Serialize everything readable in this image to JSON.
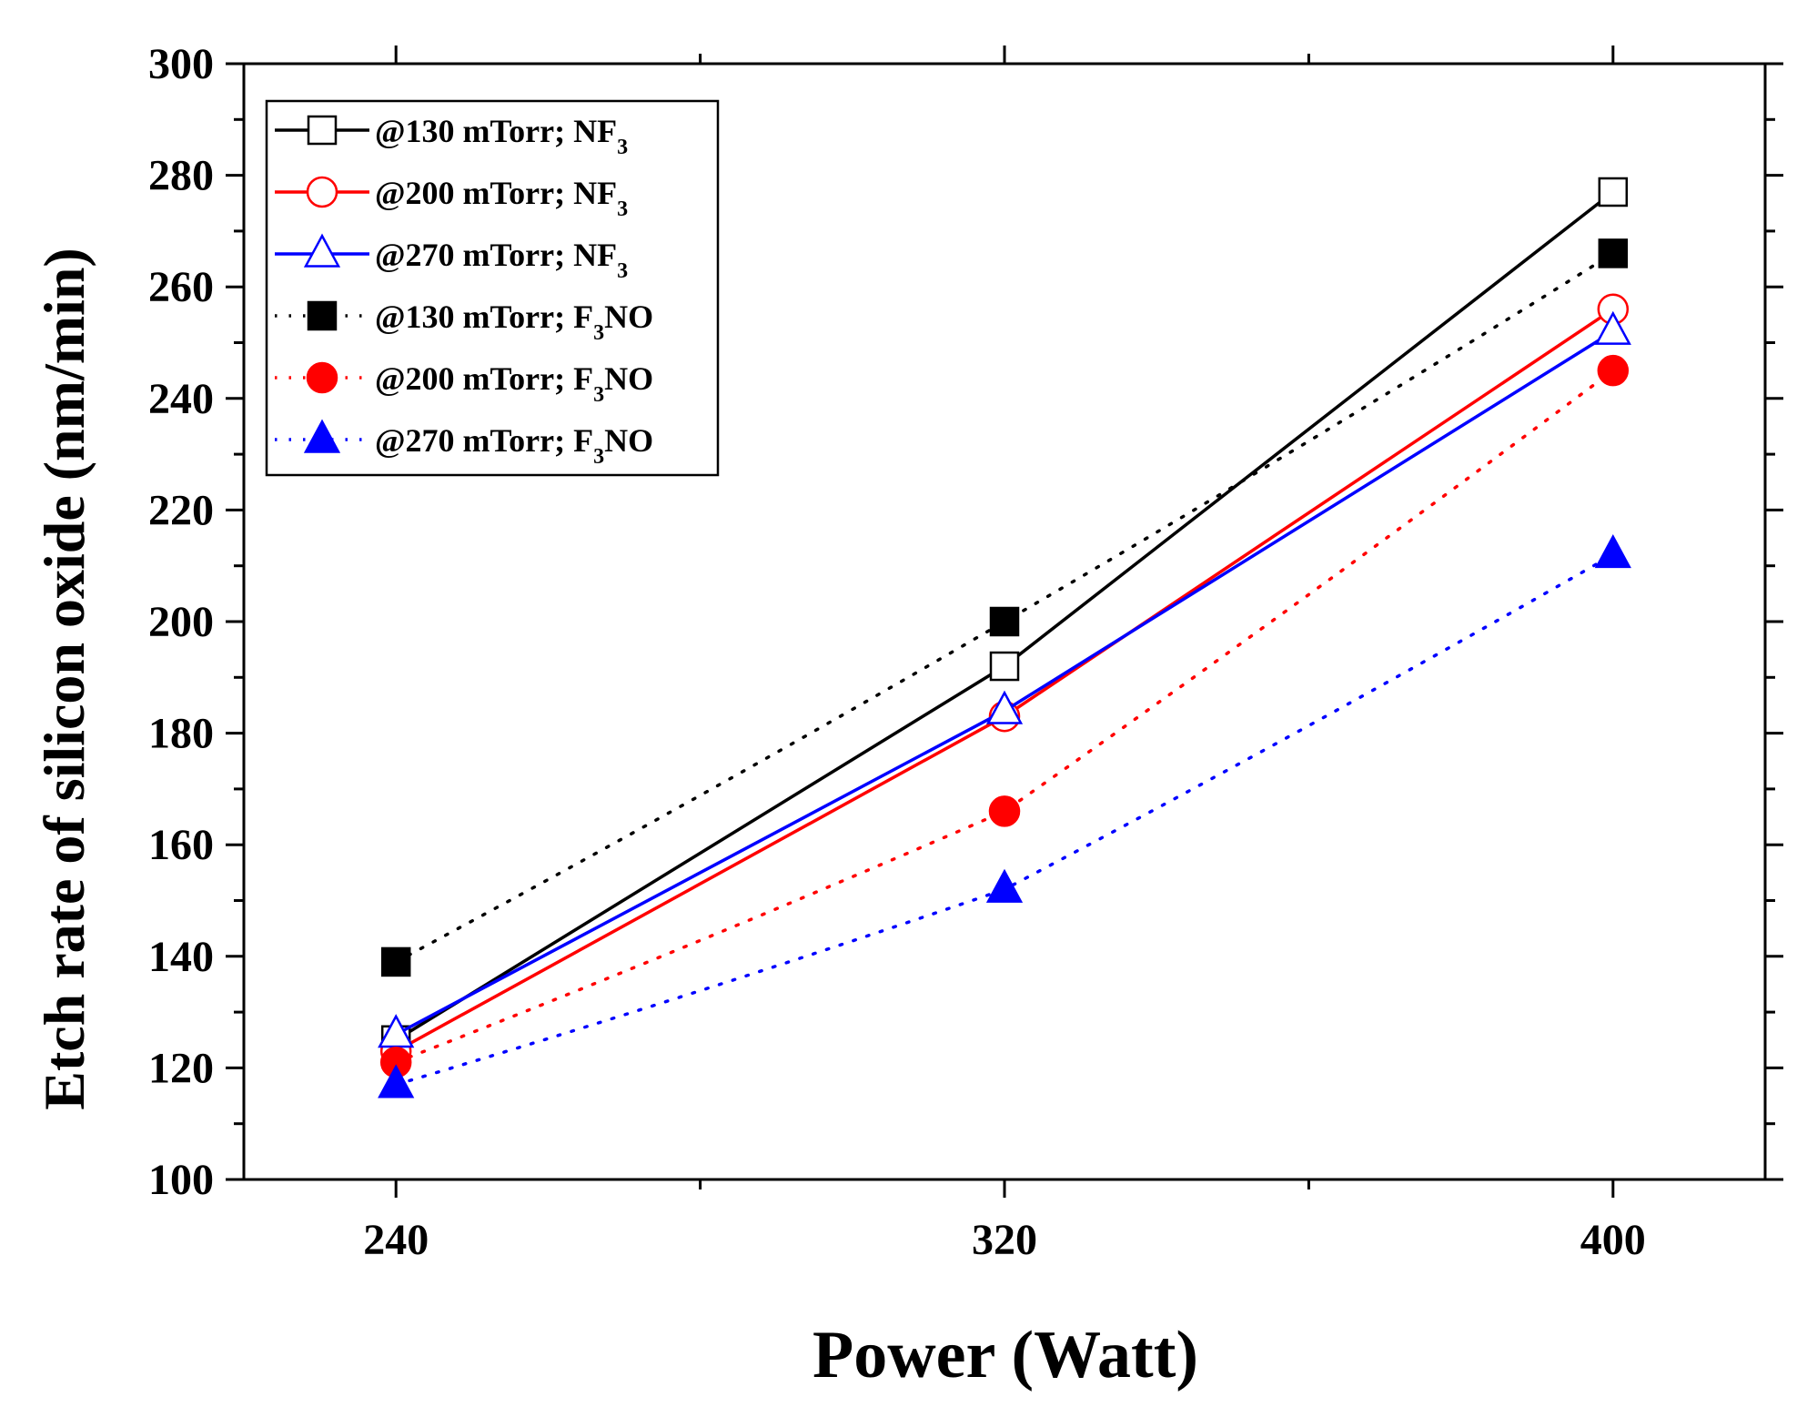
{
  "chart_data": {
    "type": "line",
    "title": "",
    "xlabel": "Power (Watt)",
    "ylabel": "Etch rate of silicon oxide (nm/min)",
    "x": [
      240,
      320,
      400
    ],
    "xticks": [
      "240",
      "320",
      "400"
    ],
    "xlim": [
      220,
      420
    ],
    "ylim": [
      100,
      300
    ],
    "yticks": [
      "100",
      "120",
      "140",
      "160",
      "180",
      "200",
      "220",
      "240",
      "260",
      "280",
      "300"
    ],
    "grid": false,
    "legend_position": "top-left",
    "series": [
      {
        "name": "@130 mTorr; NF3",
        "label_main": "@130 mTorr; NF",
        "label_sub": "3",
        "label_tail": "",
        "values": [
          125,
          192,
          277
        ],
        "color": "#000000",
        "marker": "square",
        "filled": false,
        "line": "solid"
      },
      {
        "name": "@200 mTorr; NF3",
        "label_main": "@200 mTorr; NF",
        "label_sub": "3",
        "label_tail": "",
        "values": [
          123,
          183,
          256
        ],
        "color": "#ff0000",
        "marker": "circle",
        "filled": false,
        "line": "solid"
      },
      {
        "name": "@270 mTorr; NF3",
        "label_main": "@270 mTorr; NF",
        "label_sub": "3",
        "label_tail": "",
        "values": [
          126,
          184,
          252
        ],
        "color": "#0000ff",
        "marker": "triangle",
        "filled": false,
        "line": "solid"
      },
      {
        "name": "@130 mTorr; F3NO",
        "label_main": "@130 mTorr; F",
        "label_sub": "3",
        "label_tail": "NO",
        "values": [
          139,
          200,
          266
        ],
        "color": "#000000",
        "marker": "square",
        "filled": true,
        "line": "dotted"
      },
      {
        "name": "@200 mTorr; F3NO",
        "label_main": "@200 mTorr; F",
        "label_sub": "3",
        "label_tail": "NO",
        "values": [
          121,
          166,
          245
        ],
        "color": "#ff0000",
        "marker": "circle",
        "filled": true,
        "line": "dotted"
      },
      {
        "name": "@270 mTorr; F3NO",
        "label_main": "@270 mTorr; F",
        "label_sub": "3",
        "label_tail": "NO",
        "values": [
          117,
          152,
          212
        ],
        "color": "#0000ff",
        "marker": "triangle",
        "filled": true,
        "line": "dotted"
      }
    ]
  }
}
